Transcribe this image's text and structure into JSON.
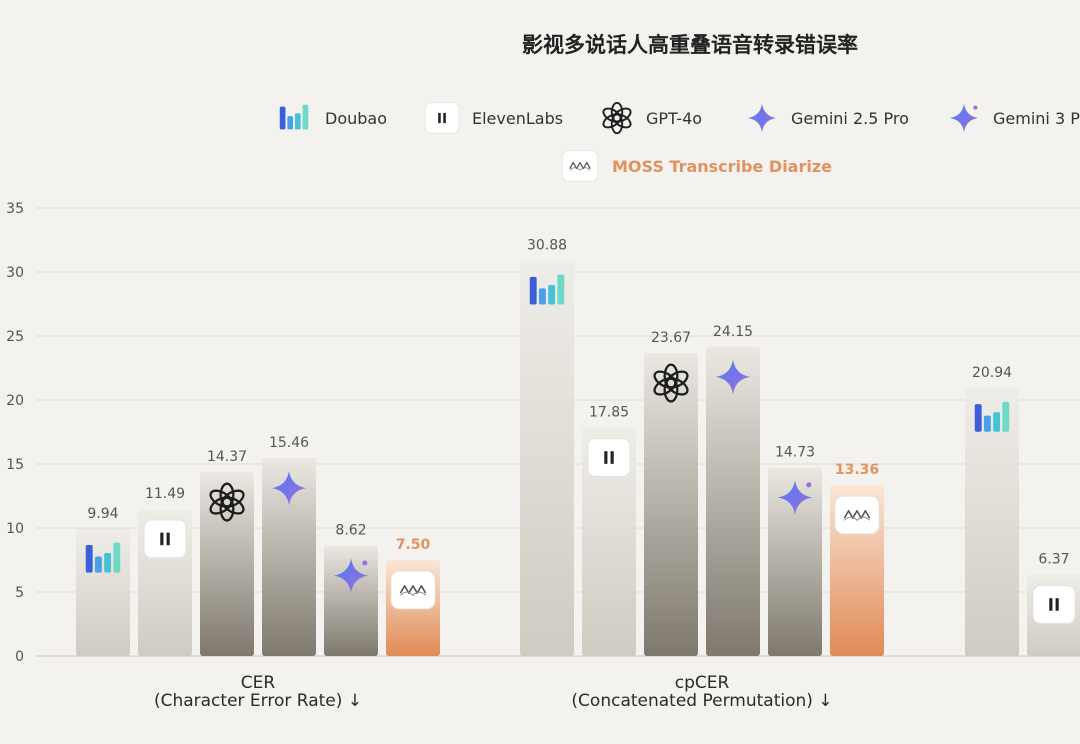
{
  "chart_data": {
    "type": "bar",
    "title": "影视多说话人高重叠语音转录错误率",
    "ylim": [
      0,
      35
    ],
    "yticks": [
      0,
      5,
      10,
      15,
      20,
      25,
      30,
      35
    ],
    "grid": true,
    "legend_position": "top",
    "series": [
      {
        "name": "Doubao",
        "icon": "doubao-icon"
      },
      {
        "name": "ElevenLabs",
        "icon": "elevenlabs-icon"
      },
      {
        "name": "GPT-4o",
        "icon": "openai-icon"
      },
      {
        "name": "Gemini 2.5 Pro",
        "icon": "gemini-sparkle-icon"
      },
      {
        "name": "Gemini 3 P",
        "icon": "gemini-sparkle-small-icon"
      },
      {
        "name": "MOSS Transcribe Diarize",
        "icon": "moss-icon",
        "highlight": true
      }
    ],
    "groups": [
      {
        "label_line1": "CER",
        "label_line2": "(Character Error Rate) ↓",
        "values": [
          9.94,
          11.49,
          14.37,
          15.46,
          8.62,
          7.5
        ],
        "value_labels": [
          "9.94",
          "11.49",
          "14.37",
          "15.46",
          "8.62",
          "7.50"
        ]
      },
      {
        "label_line1": "cpCER",
        "label_line2": "(Concatenated Permutation) ↓",
        "values": [
          30.88,
          17.85,
          23.67,
          24.15,
          14.73,
          13.36
        ],
        "value_labels": [
          "30.88",
          "17.85",
          "23.67",
          "24.15",
          "14.73",
          "13.36"
        ]
      },
      {
        "label_line1": "",
        "label_line2": "",
        "values": [
          20.94,
          6.37
        ],
        "value_labels": [
          "20.94",
          "6.37"
        ]
      }
    ],
    "colors": {
      "bar_top": "#efede8",
      "bar_bottom_light": "#cfcbc2",
      "bar_bottom_dark": "#7e786d",
      "highlight_top": "#fae6d6",
      "highlight_bottom": "#e08a57",
      "highlight_text": "#e0935f",
      "doubao": [
        "#3c5fd9",
        "#4aa0e8",
        "#46c2d6",
        "#6fd9c8"
      ],
      "gemini_blue": "#4f7cf0",
      "gemini_purple": "#9a6fe0"
    }
  }
}
